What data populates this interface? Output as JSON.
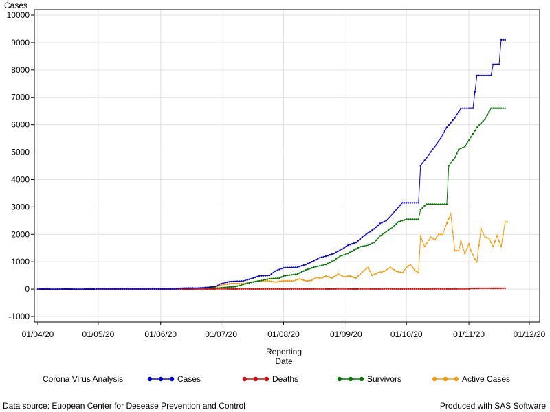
{
  "chart_data": {
    "type": "line",
    "ylabel": "Cases",
    "xlabel_lines": [
      "Reporting",
      "Date"
    ],
    "ylim": [
      -1000,
      10000
    ],
    "yticks": [
      -1000,
      0,
      1000,
      2000,
      3000,
      4000,
      5000,
      6000,
      7000,
      8000,
      9000,
      10000
    ],
    "xlim": [
      "2020-04-01",
      "2020-12-01"
    ],
    "xticks": [
      "2020-04-01",
      "2020-05-01",
      "2020-06-01",
      "2020-07-01",
      "2020-08-01",
      "2020-09-01",
      "2020-10-01",
      "2020-11-01",
      "2020-12-01"
    ],
    "xtick_labels": [
      "01/04/20",
      "01/05/20",
      "01/06/20",
      "01/07/20",
      "01/08/20",
      "01/09/20",
      "01/10/20",
      "01/11/20",
      "01/12/20"
    ],
    "grid": true,
    "legend_title": "Corona Virus Analysis",
    "legend_position": "bottom",
    "series": [
      {
        "name": "Cases",
        "color": "#0000dd",
        "points": [
          [
            "2020-04-01",
            0
          ],
          [
            "2020-04-29",
            0
          ],
          [
            "2020-04-30",
            10
          ],
          [
            "2020-06-09",
            10
          ],
          [
            "2020-06-10",
            30
          ],
          [
            "2020-06-18",
            40
          ],
          [
            "2020-06-24",
            60
          ],
          [
            "2020-06-28",
            90
          ],
          [
            "2020-07-01",
            200
          ],
          [
            "2020-07-05",
            270
          ],
          [
            "2020-07-12",
            300
          ],
          [
            "2020-07-16",
            380
          ],
          [
            "2020-07-20",
            480
          ],
          [
            "2020-07-25",
            500
          ],
          [
            "2020-07-28",
            660
          ],
          [
            "2020-08-01",
            780
          ],
          [
            "2020-08-08",
            800
          ],
          [
            "2020-08-12",
            900
          ],
          [
            "2020-08-15",
            1000
          ],
          [
            "2020-08-19",
            1150
          ],
          [
            "2020-08-22",
            1200
          ],
          [
            "2020-08-26",
            1300
          ],
          [
            "2020-08-31",
            1500
          ],
          [
            "2020-09-02",
            1600
          ],
          [
            "2020-09-06",
            1700
          ],
          [
            "2020-09-09",
            1900
          ],
          [
            "2020-09-12",
            2050
          ],
          [
            "2020-09-15",
            2200
          ],
          [
            "2020-09-18",
            2400
          ],
          [
            "2020-09-21",
            2500
          ],
          [
            "2020-09-26",
            2900
          ],
          [
            "2020-09-29",
            3150
          ],
          [
            "2020-10-07",
            3150
          ],
          [
            "2020-10-08",
            4500
          ],
          [
            "2020-10-11",
            4800
          ],
          [
            "2020-10-13",
            5000
          ],
          [
            "2020-10-15",
            5200
          ],
          [
            "2020-10-18",
            5500
          ],
          [
            "2020-10-21",
            5900
          ],
          [
            "2020-10-25",
            6250
          ],
          [
            "2020-10-28",
            6600
          ],
          [
            "2020-11-03",
            6600
          ],
          [
            "2020-11-05",
            7800
          ],
          [
            "2020-11-12",
            7800
          ],
          [
            "2020-11-13",
            8200
          ],
          [
            "2020-11-16",
            8200
          ],
          [
            "2020-11-17",
            9100
          ],
          [
            "2020-11-19",
            9100
          ]
        ]
      },
      {
        "name": "Deaths",
        "color": "#ee0000",
        "points": [
          [
            "2020-04-01",
            0
          ],
          [
            "2020-06-20",
            0
          ],
          [
            "2020-06-26",
            5
          ],
          [
            "2020-11-01",
            5
          ],
          [
            "2020-11-02",
            25
          ],
          [
            "2020-11-19",
            30
          ]
        ]
      },
      {
        "name": "Survivors",
        "color": "#007700",
        "points": [
          [
            "2020-04-01",
            0
          ],
          [
            "2020-06-09",
            0
          ],
          [
            "2020-06-10",
            10
          ],
          [
            "2020-06-20",
            20
          ],
          [
            "2020-06-28",
            30
          ],
          [
            "2020-07-02",
            60
          ],
          [
            "2020-07-08",
            90
          ],
          [
            "2020-07-12",
            170
          ],
          [
            "2020-07-16",
            250
          ],
          [
            "2020-07-20",
            300
          ],
          [
            "2020-07-25",
            380
          ],
          [
            "2020-07-30",
            400
          ],
          [
            "2020-08-01",
            480
          ],
          [
            "2020-08-08",
            550
          ],
          [
            "2020-08-12",
            700
          ],
          [
            "2020-08-16",
            800
          ],
          [
            "2020-08-22",
            900
          ],
          [
            "2020-08-26",
            1050
          ],
          [
            "2020-08-29",
            1200
          ],
          [
            "2020-09-02",
            1300
          ],
          [
            "2020-09-08",
            1550
          ],
          [
            "2020-09-12",
            1600
          ],
          [
            "2020-09-15",
            1700
          ],
          [
            "2020-09-18",
            1950
          ],
          [
            "2020-09-21",
            2100
          ],
          [
            "2020-09-24",
            2250
          ],
          [
            "2020-09-27",
            2450
          ],
          [
            "2020-10-01",
            2550
          ],
          [
            "2020-10-07",
            2550
          ],
          [
            "2020-10-08",
            2900
          ],
          [
            "2020-10-11",
            3100
          ],
          [
            "2020-10-21",
            3100
          ],
          [
            "2020-10-22",
            4500
          ],
          [
            "2020-10-25",
            4800
          ],
          [
            "2020-10-27",
            5100
          ],
          [
            "2020-10-30",
            5200
          ],
          [
            "2020-11-02",
            5550
          ],
          [
            "2020-11-05",
            5900
          ],
          [
            "2020-11-09",
            6200
          ],
          [
            "2020-11-12",
            6600
          ],
          [
            "2020-11-19",
            6600
          ]
        ]
      },
      {
        "name": "Active Cases",
        "color": "#ff9900",
        "points": [
          [
            "2020-04-01",
            0
          ],
          [
            "2020-06-09",
            0
          ],
          [
            "2020-06-20",
            30
          ],
          [
            "2020-06-28",
            60
          ],
          [
            "2020-07-01",
            150
          ],
          [
            "2020-07-06",
            200
          ],
          [
            "2020-07-12",
            200
          ],
          [
            "2020-07-16",
            250
          ],
          [
            "2020-07-20",
            300
          ],
          [
            "2020-07-25",
            300
          ],
          [
            "2020-07-28",
            260
          ],
          [
            "2020-08-01",
            300
          ],
          [
            "2020-08-06",
            300
          ],
          [
            "2020-08-09",
            380
          ],
          [
            "2020-08-12",
            300
          ],
          [
            "2020-08-15",
            320
          ],
          [
            "2020-08-17",
            420
          ],
          [
            "2020-08-20",
            400
          ],
          [
            "2020-08-22",
            480
          ],
          [
            "2020-08-25",
            400
          ],
          [
            "2020-08-28",
            550
          ],
          [
            "2020-08-31",
            450
          ],
          [
            "2020-09-03",
            480
          ],
          [
            "2020-09-06",
            400
          ],
          [
            "2020-09-09",
            620
          ],
          [
            "2020-09-12",
            800
          ],
          [
            "2020-09-14",
            500
          ],
          [
            "2020-09-17",
            600
          ],
          [
            "2020-09-20",
            650
          ],
          [
            "2020-09-23",
            800
          ],
          [
            "2020-09-26",
            650
          ],
          [
            "2020-09-29",
            600
          ],
          [
            "2020-10-01",
            800
          ],
          [
            "2020-10-03",
            900
          ],
          [
            "2020-10-05",
            700
          ],
          [
            "2020-10-07",
            600
          ],
          [
            "2020-10-08",
            1950
          ],
          [
            "2020-10-10",
            1550
          ],
          [
            "2020-10-13",
            1900
          ],
          [
            "2020-10-15",
            1800
          ],
          [
            "2020-10-17",
            2000
          ],
          [
            "2020-10-19",
            2000
          ],
          [
            "2020-10-21",
            2400
          ],
          [
            "2020-10-23",
            2750
          ],
          [
            "2020-10-25",
            1400
          ],
          [
            "2020-10-27",
            1400
          ],
          [
            "2020-10-28",
            1750
          ],
          [
            "2020-10-30",
            1300
          ],
          [
            "2020-11-01",
            1650
          ],
          [
            "2020-11-02",
            1400
          ],
          [
            "2020-11-04",
            1100
          ],
          [
            "2020-11-05",
            1000
          ],
          [
            "2020-11-07",
            2200
          ],
          [
            "2020-11-09",
            1900
          ],
          [
            "2020-11-11",
            1850
          ],
          [
            "2020-11-13",
            1550
          ],
          [
            "2020-11-15",
            1950
          ],
          [
            "2020-11-17",
            1550
          ],
          [
            "2020-11-19",
            2450
          ],
          [
            "2020-11-20",
            2450
          ]
        ]
      }
    ]
  },
  "footer": {
    "source": "Data source: Euopean Center for Desease Prevention and Control",
    "produced": "Produced with SAS Software"
  }
}
